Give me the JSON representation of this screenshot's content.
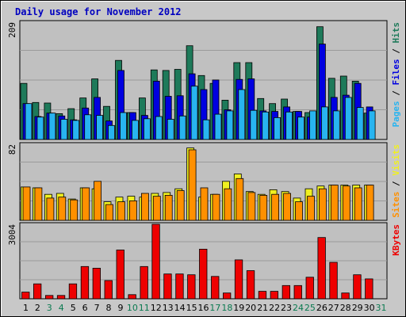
{
  "chart_data": {
    "type": "bar",
    "title": "Daily usage for November 2012",
    "x": [
      "1",
      "2",
      "3",
      "4",
      "5",
      "6",
      "7",
      "8",
      "9",
      "10",
      "11",
      "12",
      "13",
      "14",
      "15",
      "16",
      "17",
      "18",
      "19",
      "20",
      "21",
      "22",
      "23",
      "24",
      "25",
      "26",
      "27",
      "28",
      "29",
      "30",
      "31"
    ],
    "weekend_days": [
      "3",
      "4",
      "10",
      "11",
      "17",
      "18",
      "24",
      "25",
      "31"
    ],
    "colors": {
      "hits": "#1e7a5a",
      "files": "#0000e0",
      "pages": "#28b4f0",
      "visits": "#f0f020",
      "sites": "#ff9000",
      "kbytes": "#ee0000",
      "weekday_label": "#000000",
      "weekend_label": "#0a7a50",
      "title": "#0000c0",
      "plot_bg": "#c0c0c0"
    },
    "panels": [
      {
        "ymax_label": "209",
        "ylim": [
          0,
          209
        ],
        "side_labels": [
          {
            "text": "Pages",
            "color": "#28b4f0"
          },
          {
            "text": " / ",
            "color": "#000000"
          },
          {
            "text": "Files",
            "color": "#0000e0"
          },
          {
            "text": " / ",
            "color": "#000000"
          },
          {
            "text": "Hits",
            "color": "#1e7a5a"
          }
        ],
        "series": [
          {
            "key": "hits",
            "values": [
              100,
              66,
              65,
              46,
              55,
              74,
              108,
              59,
              141,
              48,
              74,
              124,
              123,
              125,
              167,
              114,
              100,
              70,
              137,
              137,
              73,
              64,
              72,
              50,
              48,
              201,
              109,
              113,
              104,
              47,
              0
            ]
          },
          {
            "key": "files",
            "values": [
              64,
              41,
              47,
              42,
              35,
              56,
              75,
              33,
              123,
              48,
              43,
              104,
              77,
              78,
              117,
              89,
              106,
              53,
              107,
              108,
              51,
              50,
              58,
              50,
              40,
              170,
              75,
              79,
              100,
              58,
              0
            ]
          },
          {
            "key": "pages",
            "values": [
              64,
              40,
              47,
              36,
              34,
              44,
              43,
              25,
              48,
              34,
              37,
              41,
              36,
              42,
              95,
              35,
              45,
              51,
              89,
              52,
              49,
              39,
              49,
              40,
              51,
              58,
              51,
              75,
              57,
              51,
              0
            ]
          }
        ]
      },
      {
        "ymax_label": "82",
        "ylim": [
          0,
          82
        ],
        "side_labels": [
          {
            "text": "Sites",
            "color": "#ff9000"
          },
          {
            "text": " / ",
            "color": "#000000"
          },
          {
            "text": "Visits",
            "color": "#f0f020"
          }
        ],
        "series": [
          {
            "key": "visits",
            "values": [
              36,
              35,
              28,
              29,
              23,
              35,
              34,
              20,
              25,
              26,
              25,
              29,
              30,
              34,
              78,
              25,
              28,
              42,
              50,
              31,
              28,
              33,
              31,
              24,
              34,
              37,
              38,
              38,
              38,
              38,
              0
            ]
          },
          {
            "key": "sites",
            "values": [
              36,
              35,
              24,
              25,
              22,
              35,
              42,
              17,
              20,
              21,
              29,
              26,
              27,
              32,
              76,
              35,
              28,
              34,
              45,
              30,
              27,
              28,
              29,
              20,
              26,
              34,
              38,
              37,
              35,
              38,
              0
            ]
          }
        ]
      },
      {
        "ymax_label": "3004",
        "ylim": [
          0,
          3004
        ],
        "side_labels": [
          {
            "text": "KBytes",
            "color": "#ee0000"
          }
        ],
        "series": [
          {
            "key": "kbytes",
            "values": [
              267,
              601,
              133,
              133,
              601,
              1302,
              1235,
              734,
              1969,
              167,
              1302,
              3004,
              1001,
              1001,
              968,
              2002,
              901,
              234,
              1569,
              1135,
              300,
              300,
              534,
              534,
              868,
              2469,
              1469,
              234,
              968,
              801,
              0
            ]
          }
        ]
      }
    ]
  }
}
